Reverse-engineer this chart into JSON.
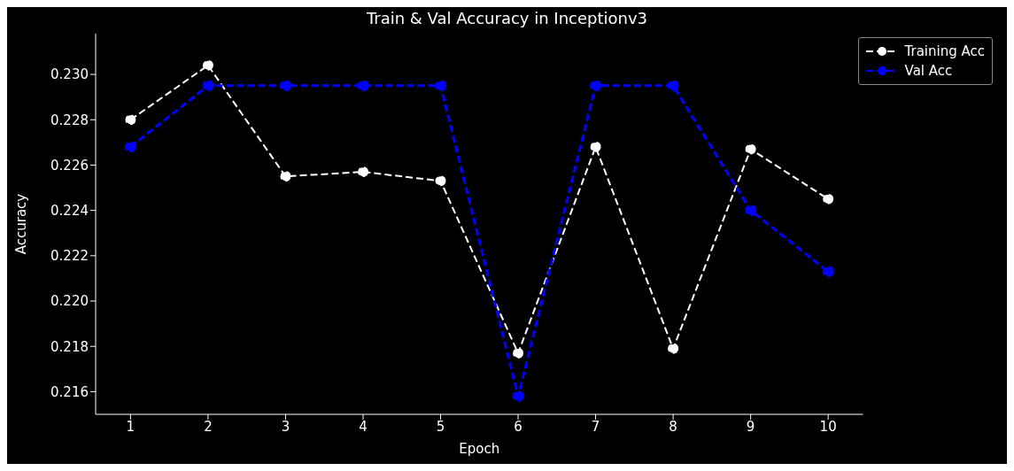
{
  "chart_data": {
    "type": "line",
    "title": "Train & Val Accuracy in Inceptionv3",
    "xlabel": "Epoch",
    "ylabel": "Accuracy",
    "x": [
      1,
      2,
      3,
      4,
      5,
      6,
      7,
      8,
      9,
      10
    ],
    "series": [
      {
        "name": "Training Acc",
        "color": "#ffffff",
        "line_style": "dashed",
        "values": [
          0.228,
          0.2304,
          0.2255,
          0.2257,
          0.2253,
          0.2177,
          0.2268,
          0.2179,
          0.2267,
          0.2245
        ]
      },
      {
        "name": "Val Acc",
        "color": "#0000ff",
        "line_style": "dashed",
        "values": [
          0.2268,
          0.2295,
          0.2295,
          0.2295,
          0.2295,
          0.2158,
          0.2295,
          0.2295,
          0.224,
          0.2213
        ]
      }
    ],
    "xlim": [
      0.55,
      10.45
    ],
    "xticks": [
      1,
      2,
      3,
      4,
      5,
      6,
      7,
      8,
      9,
      10
    ],
    "ylim": [
      0.215,
      0.2318
    ],
    "yticks": [
      {
        "value": 0.216,
        "label": "0.216"
      },
      {
        "value": 0.218,
        "label": "0.218"
      },
      {
        "value": 0.22,
        "label": "0.220"
      },
      {
        "value": 0.222,
        "label": "0.222"
      },
      {
        "value": 0.224,
        "label": "0.224"
      },
      {
        "value": 0.226,
        "label": "0.226"
      },
      {
        "value": 0.228,
        "label": "0.228"
      },
      {
        "value": 0.23,
        "label": "0.230"
      }
    ],
    "grid": false,
    "legend": "top right",
    "marker": "circle"
  }
}
